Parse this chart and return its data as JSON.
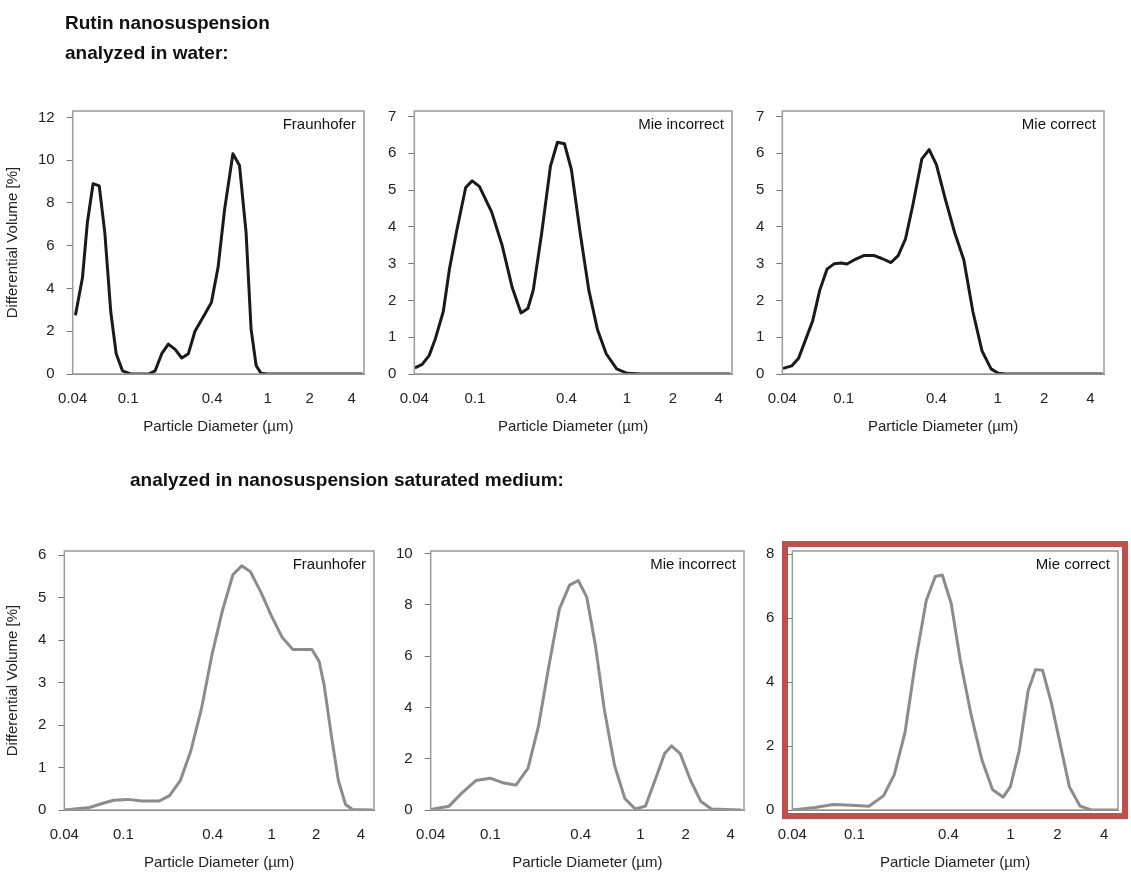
{
  "chart_data": [
    {
      "type": "line",
      "title": "Rutin nanosuspension analyzed in water:",
      "xlabel": "Particle Diameter (µm)",
      "ylabel": "Differential Volume [%]",
      "annotations": [
        "Fraunhofer"
      ],
      "log": "x",
      "color": "#1a1a1a",
      "marker": "none",
      "xlim": [
        0.04,
        4.9
      ],
      "xticks": [
        0.04,
        0.1,
        0.4,
        1,
        2,
        4
      ],
      "ylim": [
        0,
        12.3
      ],
      "yticks": [
        0,
        2,
        4,
        6,
        8,
        10,
        12
      ],
      "x": [
        0.042,
        0.047,
        0.051,
        0.056,
        0.062,
        0.068,
        0.075,
        0.082,
        0.091,
        0.104,
        0.14,
        0.156,
        0.174,
        0.194,
        0.217,
        0.242,
        0.27,
        0.301,
        0.354,
        0.395,
        0.441,
        0.491,
        0.563,
        0.628,
        0.7,
        0.76,
        0.826,
        0.896,
        1,
        4.73
      ],
      "values": [
        2.8,
        4.5,
        7.1,
        8.9,
        8.8,
        6.6,
        2.9,
        0.95,
        0.15,
        0,
        0,
        0.15,
        0.95,
        1.4,
        1.15,
        0.75,
        0.95,
        2,
        2.8,
        3.35,
        5,
        7.7,
        10.3,
        9.75,
        6.6,
        2.1,
        0.4,
        0.03,
        0,
        0
      ]
    },
    {
      "type": "line",
      "xlabel": "Particle Diameter (µm)",
      "annotations": [
        "Mie incorrect"
      ],
      "log": "x",
      "color": "#1a1a1a",
      "marker": "none",
      "xlim": [
        0.04,
        4.9
      ],
      "xticks": [
        0.04,
        0.1,
        0.4,
        1,
        2,
        4
      ],
      "ylim": [
        0,
        7.15
      ],
      "yticks": [
        0,
        1,
        2,
        3,
        4,
        5,
        6,
        7
      ],
      "x": [
        0.041,
        0.045,
        0.05,
        0.055,
        0.062,
        0.068,
        0.076,
        0.087,
        0.096,
        0.107,
        0.129,
        0.151,
        0.176,
        0.201,
        0.223,
        0.242,
        0.275,
        0.314,
        0.349,
        0.388,
        0.431,
        0.492,
        0.561,
        0.64,
        0.73,
        0.855,
        1,
        1.23,
        4.72
      ],
      "values": [
        0.18,
        0.26,
        0.5,
        0.96,
        1.7,
        2.85,
        3.9,
        5.07,
        5.25,
        5.1,
        4.4,
        3.5,
        2.35,
        1.66,
        1.78,
        2.28,
        3.84,
        5.65,
        6.3,
        6.26,
        5.56,
        3.84,
        2.28,
        1.2,
        0.55,
        0.14,
        0.02,
        0,
        0
      ]
    },
    {
      "type": "line",
      "xlabel": "Particle Diameter (µm)",
      "annotations": [
        "Mie correct"
      ],
      "log": "x",
      "color": "#1a1a1a",
      "marker": "none",
      "xlim": [
        0.04,
        4.9
      ],
      "xticks": [
        0.04,
        0.1,
        0.4,
        1,
        2,
        4
      ],
      "ylim": [
        0,
        7.15
      ],
      "yticks": [
        0,
        1,
        2,
        3,
        4,
        5,
        6,
        7
      ],
      "x": [
        0.041,
        0.046,
        0.051,
        0.056,
        0.063,
        0.07,
        0.078,
        0.087,
        0.096,
        0.105,
        0.117,
        0.135,
        0.158,
        0.177,
        0.203,
        0.226,
        0.252,
        0.281,
        0.322,
        0.359,
        0.4,
        0.458,
        0.526,
        0.603,
        0.69,
        0.791,
        0.906,
        1.01,
        1.13,
        4.77
      ],
      "values": [
        0.16,
        0.22,
        0.43,
        0.88,
        1.45,
        2.28,
        2.85,
        3,
        3.02,
        2.99,
        3.1,
        3.22,
        3.22,
        3.14,
        3.03,
        3.22,
        3.67,
        4.58,
        5.85,
        6.1,
        5.69,
        4.74,
        3.84,
        3.1,
        1.7,
        0.63,
        0.14,
        0.02,
        0,
        0
      ]
    },
    {
      "type": "line",
      "title": "analyzed in nanosuspension saturated medium:",
      "xlabel": "Particle Diameter (µm)",
      "ylabel": "Differential Volume [%]",
      "annotations": [
        "Fraunhofer"
      ],
      "log": "x",
      "color": "#8c8c8c",
      "marker": "none",
      "xlim": [
        0.04,
        4.9
      ],
      "xticks": [
        0.04,
        0.1,
        0.4,
        1,
        2,
        4
      ],
      "ylim": [
        0,
        6.1
      ],
      "yticks": [
        0,
        1,
        2,
        3,
        4,
        5,
        6
      ],
      "x": [
        0.04,
        0.059,
        0.073,
        0.086,
        0.107,
        0.133,
        0.174,
        0.205,
        0.242,
        0.285,
        0.336,
        0.395,
        0.466,
        0.548,
        0.628,
        0.72,
        0.849,
        1,
        1.18,
        1.39,
        1.63,
        1.87,
        2.09,
        2.26,
        2.53,
        2.82,
        3.15,
        3.51,
        4.73
      ],
      "values": [
        0,
        0.06,
        0.16,
        0.23,
        0.25,
        0.21,
        0.21,
        0.34,
        0.69,
        1.39,
        2.38,
        3.64,
        4.7,
        5.54,
        5.75,
        5.61,
        5.12,
        4.56,
        4.06,
        3.78,
        3.78,
        3.78,
        3.5,
        2.94,
        1.74,
        0.69,
        0.13,
        0.01,
        0
      ]
    },
    {
      "type": "line",
      "xlabel": "Particle Diameter (µm)",
      "annotations": [
        "Mie incorrect"
      ],
      "log": "x",
      "color": "#8c8c8c",
      "marker": "none",
      "xlim": [
        0.04,
        4.9
      ],
      "xticks": [
        0.04,
        0.1,
        0.4,
        1,
        2,
        4
      ],
      "ylim": [
        0,
        10.1
      ],
      "yticks": [
        0,
        2,
        4,
        6,
        8,
        10
      ],
      "x": [
        0.04,
        0.053,
        0.065,
        0.08,
        0.0995,
        0.123,
        0.148,
        0.178,
        0.209,
        0.245,
        0.288,
        0.337,
        0.385,
        0.439,
        0.501,
        0.573,
        0.672,
        0.787,
        0.923,
        1.08,
        1.27,
        1.45,
        1.61,
        1.84,
        2.16,
        2.53,
        2.97,
        4.66
      ],
      "values": [
        0.02,
        0.15,
        0.68,
        1.15,
        1.24,
        1.05,
        0.97,
        1.62,
        3.26,
        5.6,
        7.83,
        8.77,
        8.95,
        8.3,
        6.42,
        3.96,
        1.74,
        0.45,
        0.04,
        0.15,
        1.27,
        2.2,
        2.5,
        2.2,
        1.15,
        0.33,
        0.04,
        0
      ]
    },
    {
      "type": "line",
      "xlabel": "Particle Diameter (µm)",
      "annotations": [
        "Mie correct"
      ],
      "log": "x",
      "color": "#8c8c8c",
      "marker": "none",
      "xlim": [
        0.04,
        4.9
      ],
      "xticks": [
        0.04,
        0.1,
        0.4,
        1,
        2,
        4
      ],
      "ylim": [
        0,
        8.1
      ],
      "yticks": [
        0,
        2,
        4,
        6,
        8
      ],
      "x": [
        0.04,
        0.056,
        0.073,
        0.096,
        0.124,
        0.154,
        0.18,
        0.211,
        0.247,
        0.289,
        0.33,
        0.366,
        0.418,
        0.478,
        0.56,
        0.656,
        0.768,
        0.9,
        1,
        1.14,
        1.3,
        1.45,
        1.61,
        1.83,
        2.09,
        2.39,
        2.8,
        3.28,
        4.87
      ],
      "values": [
        0,
        0.08,
        0.17,
        0.15,
        0.12,
        0.45,
        1.1,
        2.42,
        4.67,
        6.55,
        7.3,
        7.35,
        6.45,
        4.67,
        2.98,
        1.58,
        0.64,
        0.4,
        0.73,
        1.86,
        3.73,
        4.39,
        4.37,
        3.36,
        2.05,
        0.73,
        0.12,
        0.01,
        0
      ]
    }
  ]
}
